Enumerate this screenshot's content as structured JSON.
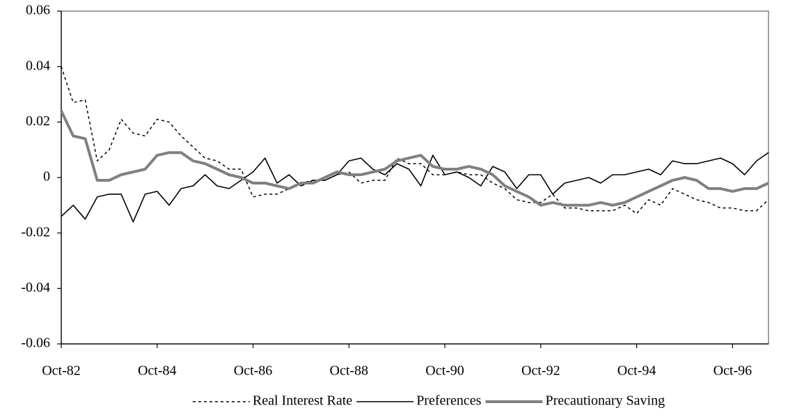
{
  "chart_data": {
    "type": "line",
    "categories": [
      "Oct-82",
      null,
      null,
      null,
      null,
      null,
      null,
      null,
      "Oct-84",
      null,
      null,
      null,
      null,
      null,
      null,
      null,
      "Oct-86",
      null,
      null,
      null,
      null,
      null,
      null,
      null,
      "Oct-88",
      null,
      null,
      null,
      null,
      null,
      null,
      null,
      "Oct-90",
      null,
      null,
      null,
      null,
      null,
      null,
      null,
      "Oct-92",
      null,
      null,
      null,
      null,
      null,
      null,
      null,
      "Oct-94",
      null,
      null,
      null,
      null,
      null,
      null,
      null,
      "Oct-96",
      null,
      null,
      null
    ],
    "series": [
      {
        "name": "Real Interest Rate",
        "color": "#000000",
        "dash": "dashed",
        "line_width": 1.5,
        "values": [
          0.04,
          0.027,
          0.028,
          0.006,
          0.01,
          0.021,
          0.016,
          0.015,
          0.021,
          0.02,
          0.015,
          0.011,
          0.007,
          0.006,
          0.003,
          0.003,
          -0.007,
          -0.006,
          -0.006,
          -0.004,
          -0.002,
          -0.001,
          -0.001,
          0.001,
          0.002,
          -0.002,
          -0.001,
          -0.001,
          0.007,
          0.005,
          0.005,
          0.001,
          0.001,
          0.002,
          0.001,
          0.001,
          -0.002,
          -0.004,
          -0.008,
          -0.009,
          -0.009,
          -0.006,
          -0.011,
          -0.011,
          -0.012,
          -0.012,
          -0.012,
          -0.01,
          -0.013,
          -0.008,
          -0.01,
          -0.004,
          -0.006,
          -0.008,
          -0.009,
          -0.011,
          -0.011,
          -0.012,
          -0.012,
          -0.008
        ]
      },
      {
        "name": "Preferences",
        "color": "#000000",
        "dash": "solid",
        "line_width": 1.6,
        "values": [
          -0.014,
          -0.01,
          -0.015,
          -0.007,
          -0.006,
          -0.006,
          -0.016,
          -0.006,
          -0.005,
          -0.01,
          -0.004,
          -0.003,
          0.001,
          -0.003,
          -0.004,
          -0.001,
          0.002,
          0.007,
          -0.002,
          0.001,
          -0.003,
          -0.001,
          -0.001,
          0.001,
          0.006,
          0.007,
          0.003,
          0.001,
          0.005,
          0.003,
          -0.003,
          0.008,
          0.001,
          0.002,
          0.0,
          -0.003,
          0.004,
          0.002,
          -0.004,
          0.001,
          0.001,
          -0.006,
          -0.002,
          -0.001,
          0.0,
          -0.002,
          0.001,
          0.001,
          0.002,
          0.003,
          0.001,
          0.006,
          0.005,
          0.005,
          0.006,
          0.007,
          0.005,
          0.001,
          0.006,
          0.009
        ]
      },
      {
        "name": "Precautionary Saving",
        "color": "#808080",
        "dash": "solid",
        "line_width": 4,
        "values": [
          0.024,
          0.015,
          0.014,
          -0.001,
          -0.001,
          0.001,
          0.002,
          0.003,
          0.008,
          0.009,
          0.009,
          0.006,
          0.005,
          0.003,
          0.001,
          0.0,
          -0.002,
          -0.002,
          -0.003,
          -0.004,
          -0.002,
          -0.002,
          0.0,
          0.002,
          0.001,
          0.001,
          0.002,
          0.003,
          0.006,
          0.007,
          0.008,
          0.004,
          0.003,
          0.003,
          0.004,
          0.003,
          0.001,
          -0.003,
          -0.005,
          -0.007,
          -0.01,
          -0.009,
          -0.01,
          -0.01,
          -0.01,
          -0.009,
          -0.01,
          -0.009,
          -0.007,
          -0.005,
          -0.003,
          -0.001,
          0.0,
          -0.001,
          -0.004,
          -0.004,
          -0.005,
          -0.004,
          -0.004,
          -0.002
        ]
      }
    ],
    "ylim": [
      -0.06,
      0.06
    ],
    "yticks": [
      -0.06,
      -0.04,
      -0.02,
      0,
      0.02,
      0.04,
      0.06
    ],
    "grid": false,
    "legend": "bottom"
  }
}
